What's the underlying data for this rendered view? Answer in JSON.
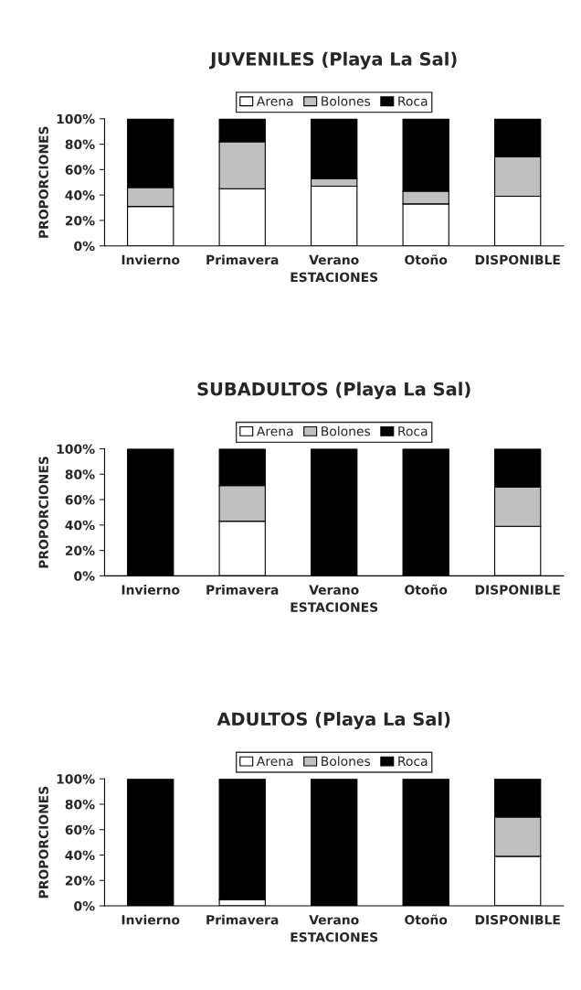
{
  "chart_data": [
    {
      "type": "bar",
      "title": "JUVENILES (Playa La Sal)",
      "xlabel": "ESTACIONES",
      "ylabel": "PROPORCIONES",
      "categories": [
        "Invierno",
        "Primavera",
        "Verano",
        "Otoño",
        "DISPONIBLE"
      ],
      "stacked": true,
      "legend": "top",
      "grid": false,
      "ylim": [
        0,
        100
      ],
      "yticks": [
        {
          "value": 0,
          "label": "0%"
        },
        {
          "value": 20,
          "label": "20%"
        },
        {
          "value": 40,
          "label": "40%"
        },
        {
          "value": 60,
          "label": "60%"
        },
        {
          "value": 80,
          "label": "80%"
        },
        {
          "value": 100,
          "label": "100%"
        }
      ],
      "series": [
        {
          "name": "Arena",
          "color": "#ffffff",
          "values": [
            31,
            45,
            47,
            33,
            39
          ]
        },
        {
          "name": "Bolones",
          "color": "#c0c0c0",
          "values": [
            15,
            37,
            6,
            10,
            31
          ]
        },
        {
          "name": "Roca",
          "color": "#000000",
          "values": [
            54,
            18,
            47,
            57,
            30
          ]
        }
      ]
    },
    {
      "type": "bar",
      "title": "SUBADULTOS (Playa La Sal)",
      "xlabel": "ESTACIONES",
      "ylabel": "PROPORCIONES",
      "categories": [
        "Invierno",
        "Primavera",
        "Verano",
        "Otoño",
        "DISPONIBLE"
      ],
      "stacked": true,
      "legend": "top",
      "grid": false,
      "ylim": [
        0,
        100
      ],
      "yticks": [
        {
          "value": 0,
          "label": "0%"
        },
        {
          "value": 20,
          "label": "20%"
        },
        {
          "value": 40,
          "label": "40%"
        },
        {
          "value": 60,
          "label": "60%"
        },
        {
          "value": 80,
          "label": "80%"
        },
        {
          "value": 100,
          "label": "100%"
        }
      ],
      "series": [
        {
          "name": "Arena",
          "color": "#ffffff",
          "values": [
            0,
            43,
            0,
            0,
            39
          ]
        },
        {
          "name": "Bolones",
          "color": "#c0c0c0",
          "values": [
            0,
            28,
            0,
            0,
            31
          ]
        },
        {
          "name": "Roca",
          "color": "#000000",
          "values": [
            100,
            29,
            100,
            100,
            30
          ]
        }
      ]
    },
    {
      "type": "bar",
      "title": "ADULTOS (Playa La Sal)",
      "xlabel": "ESTACIONES",
      "ylabel": "PROPORCIONES",
      "categories": [
        "Invierno",
        "Primavera",
        "Verano",
        "Otoño",
        "DISPONIBLE"
      ],
      "stacked": true,
      "legend": "top",
      "grid": false,
      "ylim": [
        0,
        100
      ],
      "yticks": [
        {
          "value": 0,
          "label": "0%"
        },
        {
          "value": 20,
          "label": "20%"
        },
        {
          "value": 40,
          "label": "40%"
        },
        {
          "value": 60,
          "label": "60%"
        },
        {
          "value": 80,
          "label": "80%"
        },
        {
          "value": 100,
          "label": "100%"
        }
      ],
      "series": [
        {
          "name": "Arena",
          "color": "#ffffff",
          "values": [
            0,
            5,
            0,
            0,
            39
          ]
        },
        {
          "name": "Bolones",
          "color": "#c0c0c0",
          "values": [
            0,
            0,
            0,
            0,
            31
          ]
        },
        {
          "name": "Roca",
          "color": "#000000",
          "values": [
            100,
            95,
            100,
            100,
            30
          ]
        }
      ]
    }
  ]
}
